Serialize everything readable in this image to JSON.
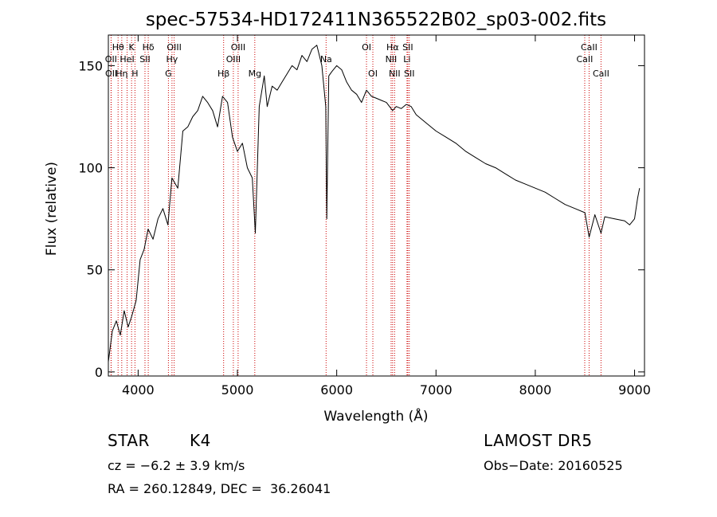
{
  "chart_data": {
    "type": "line",
    "title": "spec-57534-HD172411N365522B02_sp03-002.fits",
    "xlabel": "Wavelength (Å)",
    "ylabel": "Flux (relative)",
    "xlim": [
      3700,
      9100
    ],
    "ylim": [
      -2,
      165
    ],
    "x_ticks": [
      4000,
      5000,
      6000,
      7000,
      8000,
      9000
    ],
    "y_ticks": [
      0,
      50,
      100,
      150
    ],
    "x_tick_labels": [
      "4000",
      "5000",
      "6000",
      "7000",
      "8000",
      "9000"
    ],
    "y_tick_labels": [
      "0",
      "50",
      "100",
      "150"
    ],
    "grid": false,
    "series": [
      {
        "color": "#000000",
        "x": [
          3700,
          3740,
          3780,
          3820,
          3860,
          3900,
          3940,
          3980,
          4020,
          4060,
          4100,
          4150,
          4200,
          4250,
          4300,
          4340,
          4400,
          4450,
          4500,
          4550,
          4600,
          4650,
          4700,
          4750,
          4800,
          4850,
          4900,
          4950,
          5000,
          5050,
          5100,
          5150,
          5180,
          5220,
          5270,
          5300,
          5350,
          5400,
          5450,
          5500,
          5550,
          5600,
          5650,
          5700,
          5750,
          5800,
          5850,
          5890,
          5900,
          5920,
          5950,
          6000,
          6050,
          6100,
          6150,
          6200,
          6250,
          6300,
          6350,
          6400,
          6450,
          6500,
          6563,
          6600,
          6650,
          6700,
          6750,
          6800,
          6900,
          7000,
          7100,
          7200,
          7300,
          7400,
          7500,
          7600,
          7700,
          7800,
          7900,
          8000,
          8100,
          8200,
          8300,
          8400,
          8500,
          8542,
          8600,
          8662,
          8700,
          8800,
          8900,
          8950,
          9000,
          9030,
          9050
        ],
        "y": [
          5,
          20,
          25,
          18,
          30,
          22,
          28,
          35,
          55,
          60,
          70,
          65,
          75,
          80,
          72,
          95,
          90,
          118,
          120,
          125,
          128,
          135,
          132,
          128,
          120,
          135,
          132,
          115,
          108,
          112,
          100,
          95,
          68,
          130,
          145,
          130,
          140,
          138,
          142,
          146,
          150,
          148,
          155,
          152,
          158,
          160,
          150,
          130,
          75,
          145,
          147,
          150,
          148,
          142,
          138,
          136,
          132,
          138,
          135,
          134,
          133,
          132,
          128,
          130,
          129,
          131,
          130,
          126,
          122,
          118,
          115,
          112,
          108,
          105,
          102,
          100,
          97,
          94,
          92,
          90,
          88,
          85,
          82,
          80,
          78,
          66,
          77,
          68,
          76,
          75,
          74,
          72,
          75,
          85,
          90
        ]
      }
    ],
    "annotations": [
      {
        "label": "Hθ",
        "x": 3798,
        "row": 1
      },
      {
        "label": "OII",
        "x": 3727,
        "row": 2
      },
      {
        "label": "OII",
        "x": 3729,
        "row": 3
      },
      {
        "label": "Hη",
        "x": 3835,
        "row": 3
      },
      {
        "label": "K",
        "x": 3934,
        "row": 1
      },
      {
        "label": "HeI",
        "x": 3889,
        "row": 2
      },
      {
        "label": "H",
        "x": 3968,
        "row": 3
      },
      {
        "label": "Hδ",
        "x": 4102,
        "row": 1
      },
      {
        "label": "SII",
        "x": 4069,
        "row": 2
      },
      {
        "label": "OIII",
        "x": 4363,
        "row": 1
      },
      {
        "label": "Hγ",
        "x": 4341,
        "row": 2
      },
      {
        "label": "G",
        "x": 4305,
        "row": 3
      },
      {
        "label": "OIII",
        "x": 5007,
        "row": 1
      },
      {
        "label": "OIII",
        "x": 4959,
        "row": 2
      },
      {
        "label": "Hβ",
        "x": 4861,
        "row": 3
      },
      {
        "label": "Mg",
        "x": 5175,
        "row": 3
      },
      {
        "label": "Na",
        "x": 5893,
        "row": 2
      },
      {
        "label": "OI",
        "x": 6300,
        "row": 1
      },
      {
        "label": "OI",
        "x": 6364,
        "row": 3
      },
      {
        "label": "Hα",
        "x": 6563,
        "row": 1
      },
      {
        "label": "SII",
        "x": 6716,
        "row": 1
      },
      {
        "label": "NII",
        "x": 6548,
        "row": 2
      },
      {
        "label": "Li",
        "x": 6708,
        "row": 2
      },
      {
        "label": "NII",
        "x": 6583,
        "row": 3
      },
      {
        "label": "SII",
        "x": 6731,
        "row": 3
      },
      {
        "label": "CaII",
        "x": 8542,
        "row": 1
      },
      {
        "label": "CaII",
        "x": 8498,
        "row": 2
      },
      {
        "label": "CaII",
        "x": 8662,
        "row": 3
      }
    ],
    "line_color": "#cc0000"
  },
  "info": {
    "object_type": "STAR",
    "subclass": "K4",
    "survey": "LAMOST DR5",
    "cz": "cz = −6.2 ± 3.9 km/s",
    "obs_date": "Obs−Date: 20160525",
    "coords": "RA = 260.12849, DEC =  36.26041"
  }
}
